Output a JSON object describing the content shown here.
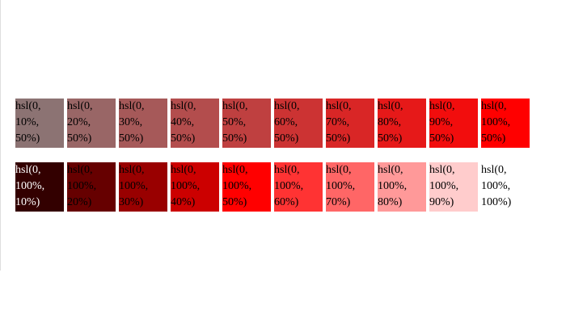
{
  "rows": [
    {
      "swatches": [
        {
          "label": "hsl(0, 10%, 50%)",
          "color": "hsl(0, 10%, 50%)",
          "text_color": "#000000"
        },
        {
          "label": "hsl(0, 20%, 50%)",
          "color": "hsl(0, 20%, 50%)",
          "text_color": "#000000"
        },
        {
          "label": "hsl(0, 30%, 50%)",
          "color": "hsl(0, 30%, 50%)",
          "text_color": "#000000"
        },
        {
          "label": "hsl(0, 40%, 50%)",
          "color": "hsl(0, 40%, 50%)",
          "text_color": "#000000"
        },
        {
          "label": "hsl(0, 50%, 50%)",
          "color": "hsl(0, 50%, 50%)",
          "text_color": "#000000"
        },
        {
          "label": "hsl(0, 60%, 50%)",
          "color": "hsl(0, 60%, 50%)",
          "text_color": "#000000"
        },
        {
          "label": "hsl(0, 70%, 50%)",
          "color": "hsl(0, 70%, 50%)",
          "text_color": "#000000"
        },
        {
          "label": "hsl(0, 80%, 50%)",
          "color": "hsl(0, 80%, 50%)",
          "text_color": "#000000"
        },
        {
          "label": "hsl(0, 90%, 50%)",
          "color": "hsl(0, 90%, 50%)",
          "text_color": "#000000"
        },
        {
          "label": "hsl(0, 100%, 50%)",
          "color": "hsl(0, 100%, 50%)",
          "text_color": "#000000"
        }
      ]
    },
    {
      "swatches": [
        {
          "label": "hsl(0, 100%, 10%)",
          "color": "hsl(0, 100%, 10%)",
          "text_color": "#ffffff"
        },
        {
          "label": "hsl(0, 100%, 20%)",
          "color": "hsl(0, 100%, 20%)",
          "text_color": "#000000"
        },
        {
          "label": "hsl(0, 100%, 30%)",
          "color": "hsl(0, 100%, 30%)",
          "text_color": "#000000"
        },
        {
          "label": "hsl(0, 100%, 40%)",
          "color": "hsl(0, 100%, 40%)",
          "text_color": "#000000"
        },
        {
          "label": "hsl(0, 100%, 50%)",
          "color": "hsl(0, 100%, 50%)",
          "text_color": "#000000"
        },
        {
          "label": "hsl(0, 100%, 60%)",
          "color": "hsl(0, 100%, 60%)",
          "text_color": "#000000"
        },
        {
          "label": "hsl(0, 100%, 70%)",
          "color": "hsl(0, 100%, 70%)",
          "text_color": "#000000"
        },
        {
          "label": "hsl(0, 100%, 80%)",
          "color": "hsl(0, 100%, 80%)",
          "text_color": "#000000"
        },
        {
          "label": "hsl(0, 100%, 90%)",
          "color": "hsl(0, 100%, 90%)",
          "text_color": "#000000"
        },
        {
          "label": "hsl(0, 100%, 100%)",
          "color": "hsl(0, 100%, 100%)",
          "text_color": "#000000"
        }
      ]
    }
  ]
}
